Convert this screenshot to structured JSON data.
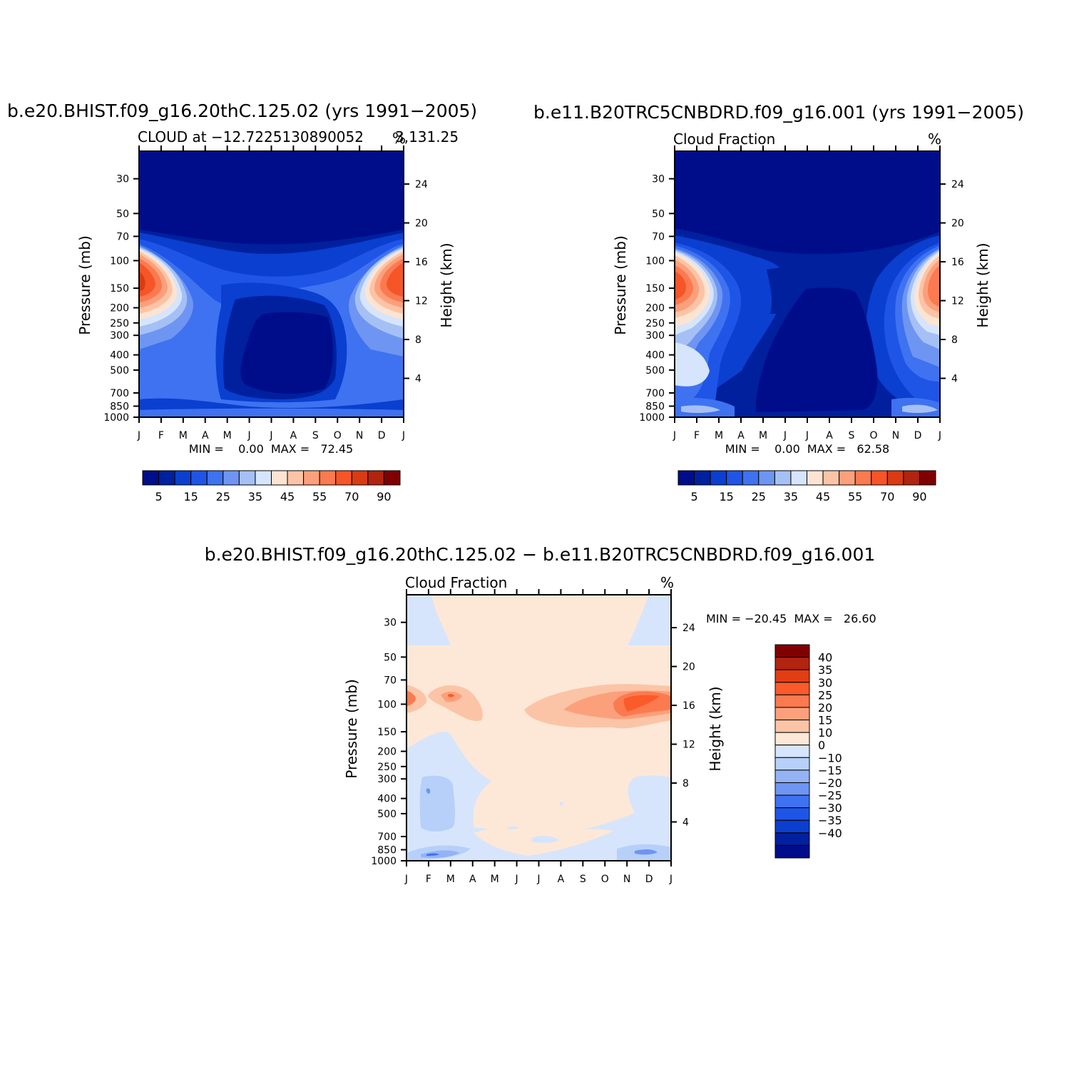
{
  "chart_data": [
    {
      "type": "contour",
      "title": "b.e20.BHIST.f09_g16.20thC.125.02 (yrs 1991−2005)",
      "subtitle_left": "CLOUD at −12.7225130890052",
      "subtitle_overlap": "3,131.25",
      "subtitle_right": "%",
      "ylabel": "Pressure (mb)",
      "ylabel_right": "Height (km)",
      "x_ticks": [
        "J",
        "F",
        "M",
        "A",
        "M",
        "J",
        "J",
        "A",
        "S",
        "O",
        "N",
        "D",
        "J"
      ],
      "y_ticks": [
        "30",
        "50",
        "70",
        "100",
        "150",
        "200",
        "250",
        "300",
        "400",
        "500",
        "700",
        "850",
        "1000"
      ],
      "y_ticks_right": [
        "24",
        "20",
        "16",
        "12",
        "8",
        "4"
      ],
      "stats": "MIN =    0.00  MAX =   72.45",
      "stats_min": 0.0,
      "stats_max": 72.45,
      "colorbar_labels": [
        "5",
        "15",
        "25",
        "35",
        "45",
        "55",
        "70",
        "90"
      ]
    },
    {
      "type": "contour",
      "title": "b.e11.B20TRC5CNBDRD.f09_g16.001 (yrs 1991−2005)",
      "subtitle_left": "Cloud Fraction",
      "subtitle_right": "%",
      "ylabel": "Pressure (mb)",
      "ylabel_right": "Height (km)",
      "x_ticks": [
        "J",
        "F",
        "M",
        "A",
        "M",
        "J",
        "J",
        "A",
        "S",
        "O",
        "N",
        "D",
        "J"
      ],
      "y_ticks": [
        "30",
        "50",
        "70",
        "100",
        "150",
        "200",
        "250",
        "300",
        "400",
        "500",
        "700",
        "850",
        "1000"
      ],
      "y_ticks_right": [
        "24",
        "20",
        "16",
        "12",
        "8",
        "4"
      ],
      "stats": "MIN =    0.00  MAX =   62.58",
      "stats_min": 0.0,
      "stats_max": 62.58,
      "colorbar_labels": [
        "5",
        "15",
        "25",
        "35",
        "45",
        "55",
        "70",
        "90"
      ]
    },
    {
      "type": "contour",
      "title": "b.e20.BHIST.f09_g16.20thC.125.02 − b.e11.B20TRC5CNBDRD.f09_g16.001",
      "subtitle_left": "Cloud Fraction",
      "subtitle_right": "%",
      "ylabel": "Pressure (mb)",
      "ylabel_right": "Height (km)",
      "x_ticks": [
        "J",
        "F",
        "M",
        "A",
        "M",
        "J",
        "J",
        "A",
        "S",
        "O",
        "N",
        "D",
        "J"
      ],
      "y_ticks": [
        "30",
        "50",
        "70",
        "100",
        "150",
        "200",
        "250",
        "300",
        "400",
        "500",
        "700",
        "850",
        "1000"
      ],
      "y_ticks_right": [
        "24",
        "20",
        "16",
        "12",
        "8",
        "4"
      ],
      "stats": "MIN = −20.45  MAX =   26.60",
      "stats_min": -20.45,
      "stats_max": 26.6,
      "colorbar_labels": [
        "40",
        "35",
        "30",
        "25",
        "20",
        "15",
        "10",
        "0",
        "−10",
        "−15",
        "−20",
        "−25",
        "−30",
        "−35",
        "−40"
      ]
    }
  ],
  "colors": {
    "seq": [
      "#000d8a",
      "#00209e",
      "#0a3fd0",
      "#1f55e6",
      "#3e72f0",
      "#6e95f2",
      "#a5c0f5",
      "#d6e5fb",
      "#fde4d2",
      "#fcc4a6",
      "#fca07c",
      "#fb7a4f",
      "#f65528",
      "#d93b13",
      "#b02410",
      "#800000"
    ],
    "diff": [
      "#800000",
      "#b02410",
      "#e33d15",
      "#fb5a2a",
      "#fb7a4f",
      "#fca07c",
      "#fcc4a6",
      "#fde8d8",
      "#d6e5fb",
      "#b7d0f9",
      "#94b3f6",
      "#6e95f2",
      "#3e72f0",
      "#1f55e6",
      "#0a3fd0",
      "#00209e",
      "#000d8a"
    ]
  }
}
